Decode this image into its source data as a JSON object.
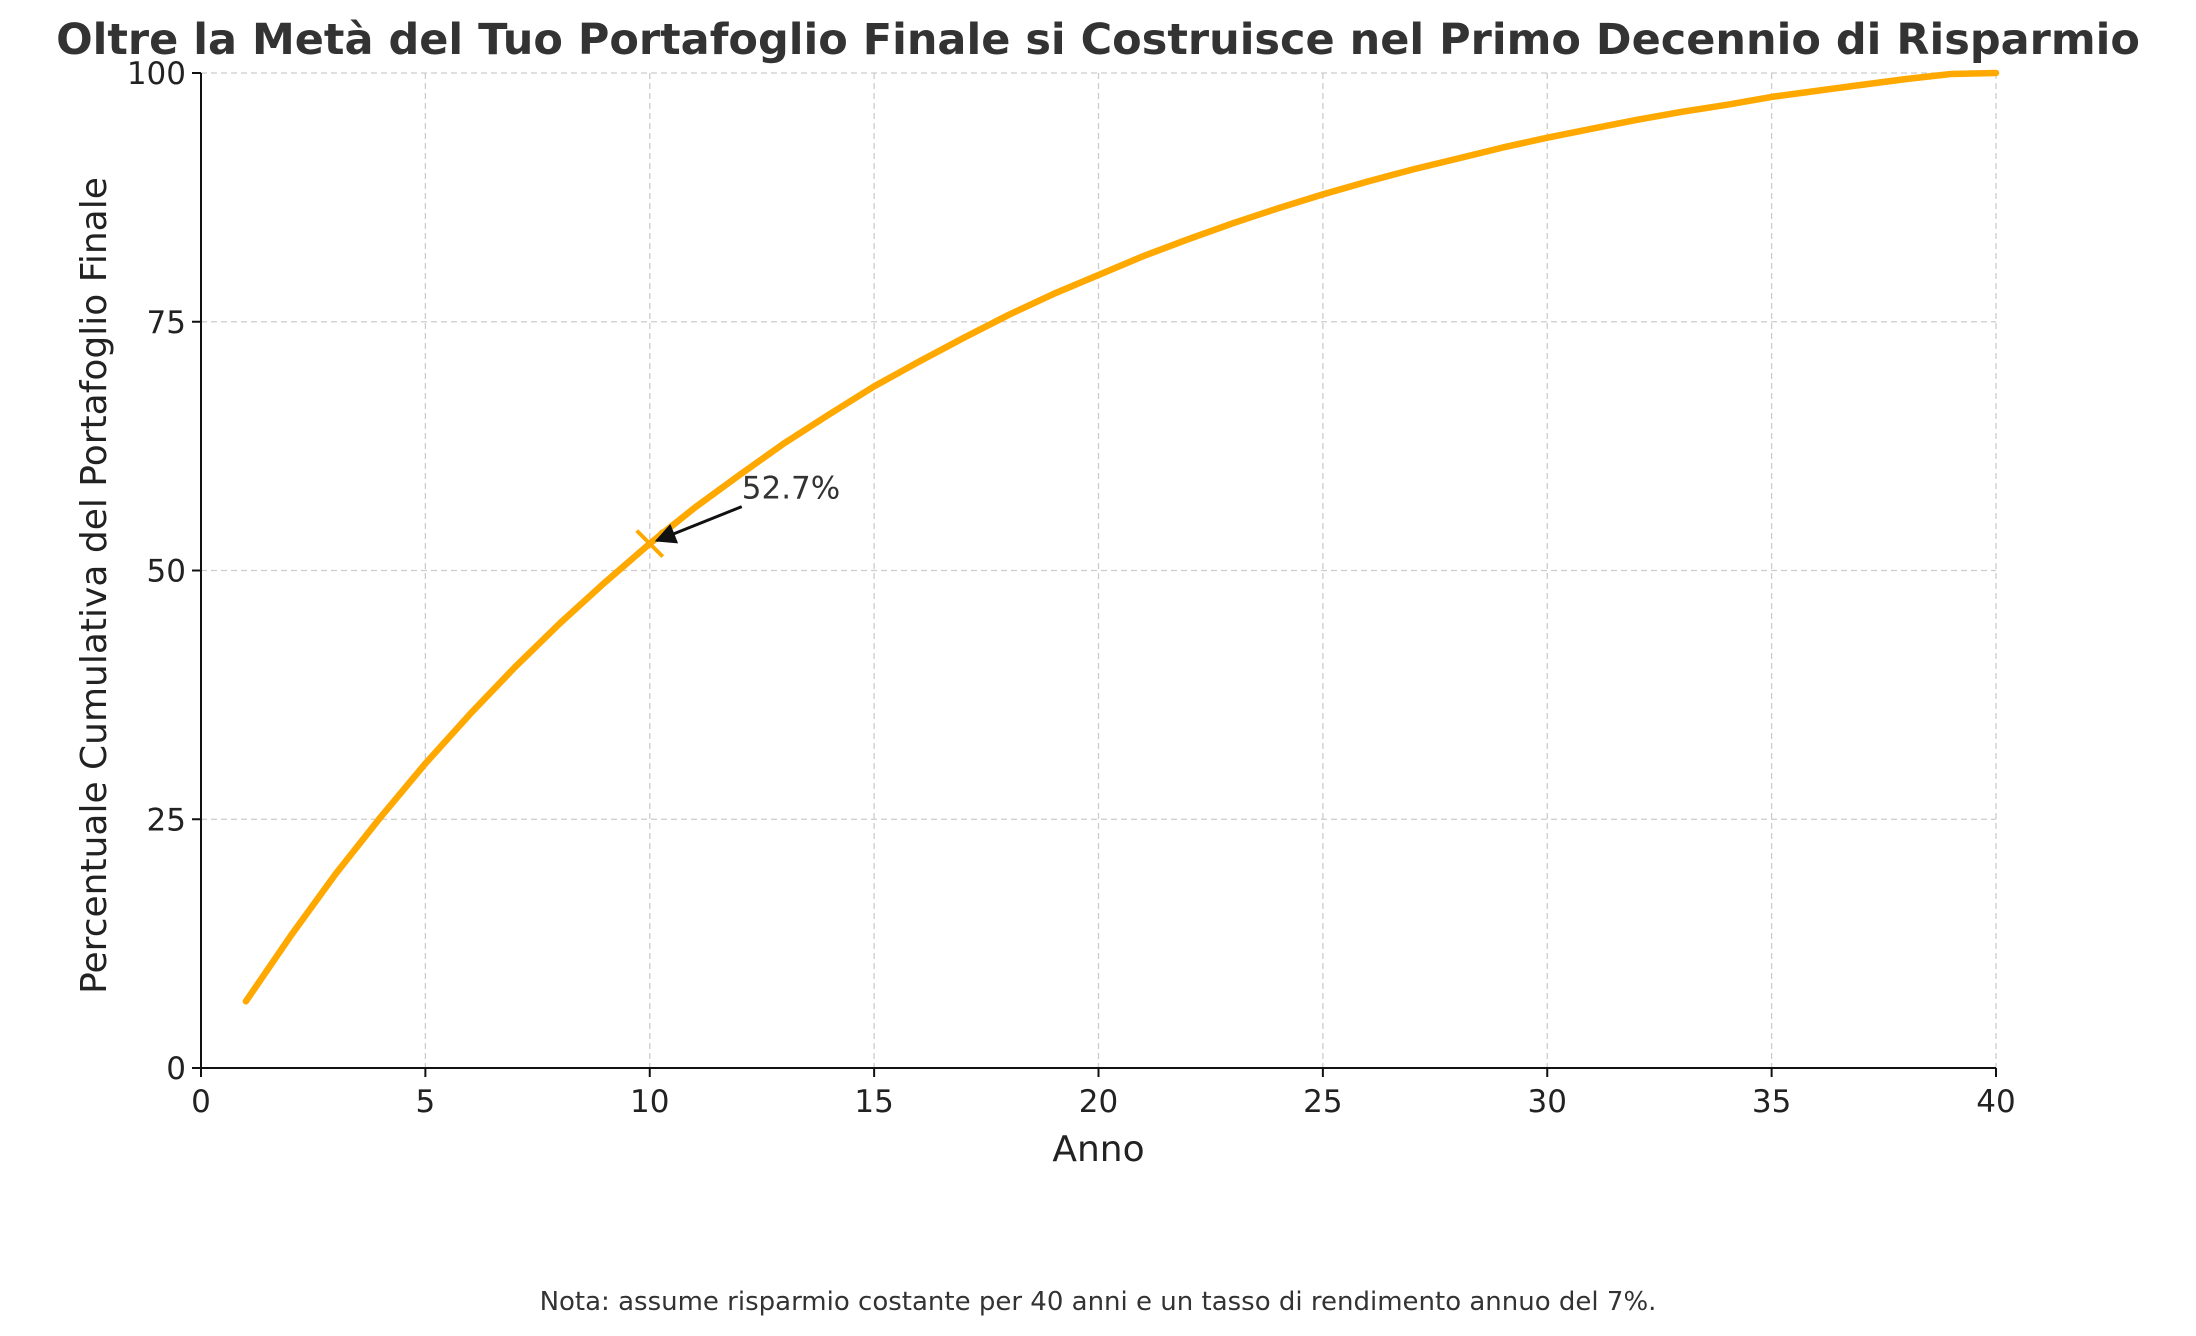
{
  "chart_data": {
    "type": "line",
    "title": "Oltre la Metà del Tuo Portafoglio Finale si Costruisce nel Primo Decennio di Risparmio",
    "xlabel": "Anno",
    "ylabel": "Percentuale Cumulativa del Portafoglio Finale",
    "xlim": [
      0,
      40
    ],
    "ylim": [
      0,
      100
    ],
    "x_ticks": [
      0,
      5,
      10,
      15,
      20,
      25,
      30,
      35,
      40
    ],
    "y_ticks": [
      0,
      25,
      50,
      75,
      100
    ],
    "x_tick_labels": [
      "0",
      "5",
      "10",
      "15",
      "20",
      "25",
      "30",
      "35",
      "40"
    ],
    "y_tick_labels": [
      "0",
      "25",
      "50",
      "75",
      "100"
    ],
    "grid": true,
    "series": [
      {
        "color": "#FFA800",
        "x": [
          1,
          2,
          3,
          4,
          5,
          6,
          7,
          8,
          9,
          10,
          11,
          12,
          13,
          14,
          15,
          16,
          17,
          18,
          19,
          20,
          21,
          22,
          23,
          24,
          25,
          26,
          27,
          28,
          29,
          30,
          31,
          32,
          33,
          34,
          35,
          36,
          37,
          38,
          39,
          40
        ],
        "values": [
          6.7,
          13.3,
          19.5,
          25.2,
          30.6,
          35.6,
          40.3,
          44.7,
          48.8,
          52.7,
          56.3,
          59.6,
          62.8,
          65.7,
          68.5,
          71.0,
          73.4,
          75.7,
          77.8,
          79.7,
          81.6,
          83.3,
          84.9,
          86.4,
          87.8,
          89.1,
          90.3,
          91.4,
          92.5,
          93.5,
          94.4,
          95.3,
          96.1,
          96.8,
          97.6,
          98.2,
          98.8,
          99.4,
          99.9,
          100.0
        ]
      }
    ],
    "highlight_point": {
      "x": 10,
      "y": 52.7,
      "label": "52.7%",
      "marker": "x",
      "color": "#FFA800"
    },
    "footnote": "Nota: assume risparmio costante per 40 anni e un tasso di rendimento annuo del 7%."
  }
}
